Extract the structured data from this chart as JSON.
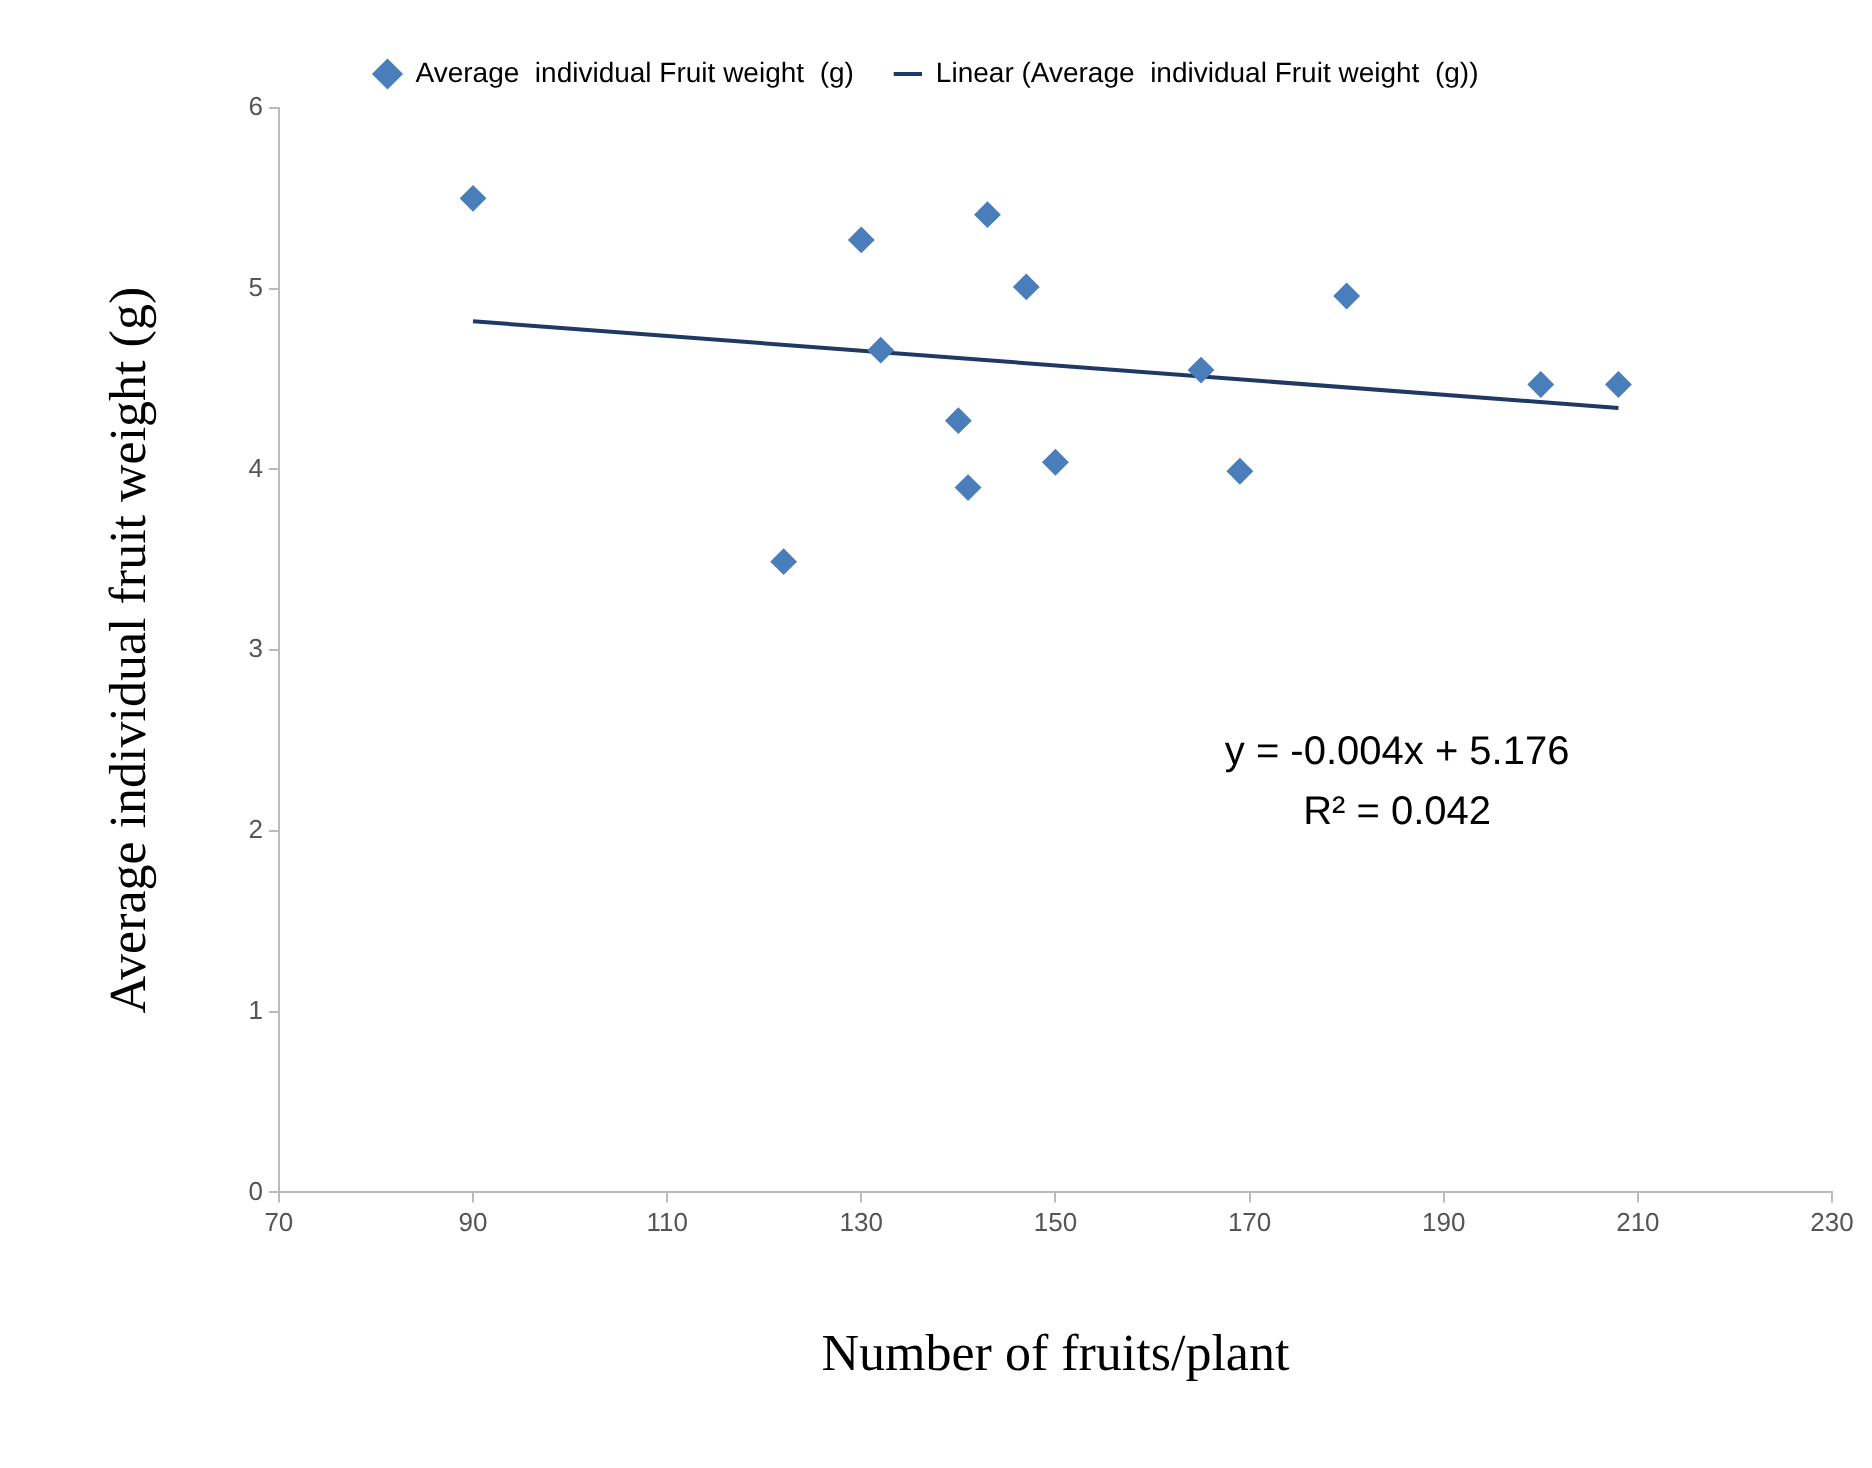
{
  "chart_data": {
    "type": "scatter",
    "xlabel": "Number of fruits/plant",
    "ylabel": "Average individual fruit weight (g)",
    "series": [
      {
        "name": "Average  individual Fruit weight  (g)",
        "color": "#4a7ebb",
        "marker": "diamond",
        "x": [
          90,
          130,
          132,
          143,
          147,
          140,
          141,
          150,
          122,
          180,
          165,
          169,
          200,
          208
        ],
        "values": [
          5.5,
          5.27,
          4.66,
          5.41,
          5.01,
          4.27,
          3.9,
          4.04,
          3.49,
          4.96,
          4.55,
          3.99,
          4.47,
          4.47
        ]
      },
      {
        "name": "Linear (Average  individual Fruit weight  (g))",
        "type": "line",
        "color": "#1f3864",
        "marker": "none",
        "line_style": "solid",
        "x": [
          90,
          208
        ],
        "values": [
          4.82,
          4.34
        ]
      }
    ],
    "annotations": [
      "y = -0.004x + 5.176",
      "R² = 0.042"
    ],
    "xlim": [
      70,
      230
    ],
    "xticks": [
      70,
      90,
      110,
      130,
      150,
      170,
      190,
      210,
      230
    ],
    "ylim": [
      0,
      6
    ],
    "yticks": [
      0,
      1,
      2,
      3,
      4,
      5,
      6
    ],
    "grid": false,
    "legend": "top"
  }
}
